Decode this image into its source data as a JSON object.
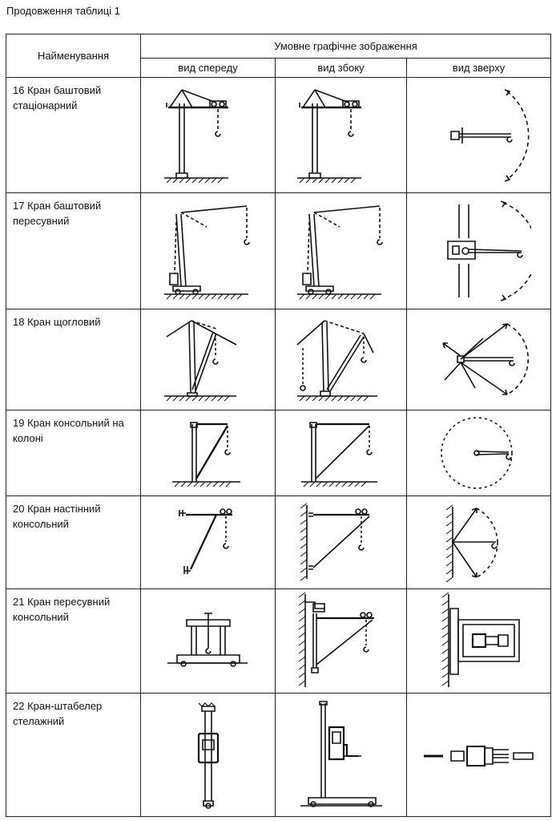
{
  "caption": "Продовження таблиці 1",
  "header": {
    "name_col": "Найменування",
    "group": "Умовне графічне зображення",
    "views": [
      "вид спереду",
      "вид збоку",
      "вид зверху"
    ]
  },
  "rows": [
    {
      "name": "16 Кран баштовий стаціонарний"
    },
    {
      "name": "17 Кран баштовий пересувний"
    },
    {
      "name": "18 Кран щогловий"
    },
    {
      "name": "19 Кран консольний на колоні"
    },
    {
      "name": "20 Кран настінний консольний"
    },
    {
      "name": "21 Кран пересувний консольний"
    },
    {
      "name": "22 Кран-штабелер стелажний"
    }
  ]
}
